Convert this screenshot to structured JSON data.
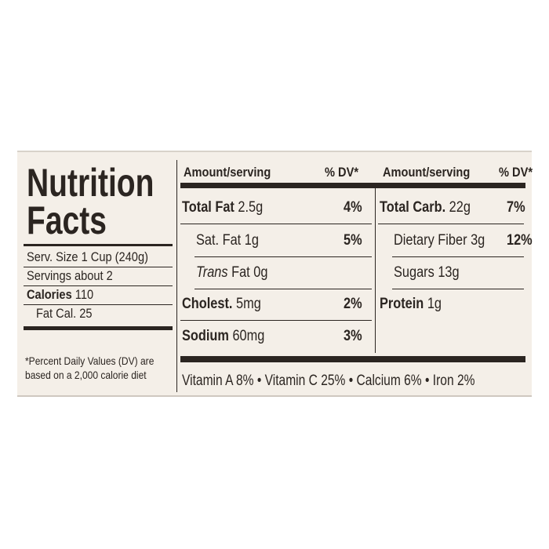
{
  "title_lines": [
    "Nutrition",
    "Facts"
  ],
  "serving_size": "Serv. Size 1 Cup (240g)",
  "servings": "Servings about 2",
  "calories": {
    "label": "Calories",
    "value": "110"
  },
  "fat_calories": "Fat Cal. 25",
  "footnote_lines": [
    "*Percent Daily Values (DV) are",
    "based on a 2,000 calorie diet"
  ],
  "headers": [
    "Amount/serving",
    "% DV*",
    "Amount/serving",
    "% DV*"
  ],
  "left_rows": [
    {
      "name": "Total Fat",
      "amount": "2.5g",
      "dv": "4%"
    },
    {
      "name": "Sat. Fat",
      "amount": "1g",
      "dv": "5%"
    },
    {
      "name_italic": "Trans",
      "name": "Fat",
      "amount": "0g"
    },
    {
      "name": "Cholest.",
      "amount": "5mg",
      "dv": "2%"
    },
    {
      "name": "Sodium",
      "amount": "60mg",
      "dv": "3%"
    }
  ],
  "right_rows": [
    {
      "name": "Total Carb.",
      "amount": "22g",
      "dv": "7%"
    },
    {
      "name": "Dietary Fiber",
      "amount": "3g",
      "dv": "12%"
    },
    {
      "name": "Sugars",
      "amount": "13g"
    },
    {
      "name": "Protein",
      "amount": "1g"
    }
  ],
  "vitamins": [
    "Vitamin A 8%",
    "Vitamin C 25%",
    "Calcium 6%",
    "Iron 2%"
  ]
}
